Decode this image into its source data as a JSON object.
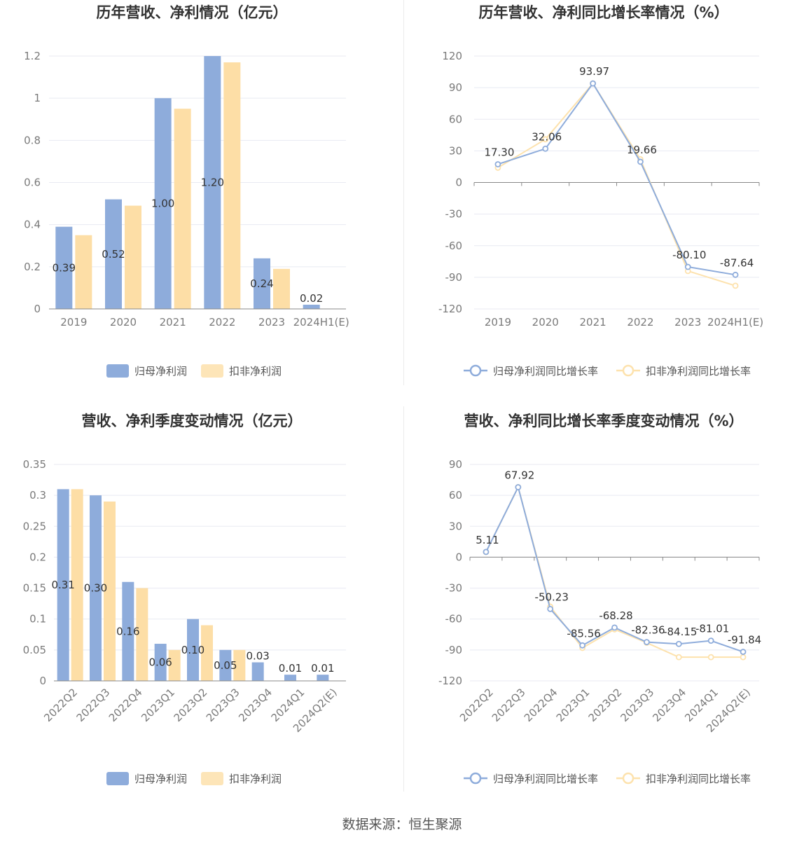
{
  "footer": {
    "source": "数据来源：恒生聚源"
  },
  "colors": {
    "primary": "#8eacdb",
    "secondary": "#fddea6",
    "primary_line": "#8eacdb",
    "secondary_line": "#fde2ad",
    "grid": "#e8eaf2",
    "axis": "#888888"
  },
  "chart_data": [
    {
      "id": "annual_profit",
      "type": "bar",
      "title": "历年营收、净利情况（亿元）",
      "categories": [
        "2019",
        "2020",
        "2021",
        "2022",
        "2023",
        "2024H1(E)"
      ],
      "series": [
        {
          "name": "归母净利润",
          "values": [
            0.39,
            0.52,
            1.0,
            1.2,
            0.24,
            0.02
          ],
          "labels": [
            "0.39",
            "0.52",
            "1.00",
            "1.20",
            "0.24",
            "0.02"
          ]
        },
        {
          "name": "扣非净利润",
          "values": [
            0.35,
            0.49,
            0.95,
            1.17,
            0.19,
            0.0
          ]
        }
      ],
      "yticks": [
        "0",
        "0.2",
        "0.4",
        "0.6",
        "0.8",
        "1",
        "1.2"
      ],
      "ylim": [
        0,
        1.2
      ],
      "legend": "bottom-center",
      "grid": true
    },
    {
      "id": "annual_growth",
      "type": "line",
      "title": "历年营收、净利同比增长率情况（%）",
      "categories": [
        "2019",
        "2020",
        "2021",
        "2022",
        "2023",
        "2024H1(E)"
      ],
      "series": [
        {
          "name": "归母净利润同比增长率",
          "values": [
            17.3,
            32.06,
            93.97,
            19.66,
            -80.1,
            -87.64
          ],
          "labels": [
            "17.30",
            "32.06",
            "93.97",
            "19.66",
            "-80.10",
            "-87.64"
          ]
        },
        {
          "name": "扣非净利润同比增长率",
          "values": [
            14,
            41,
            94,
            22,
            -84,
            -98
          ]
        }
      ],
      "yticks": [
        "120",
        "90",
        "60",
        "30",
        "0",
        "-30",
        "-60",
        "-90",
        "-120"
      ],
      "ylim": [
        -120,
        120
      ],
      "legend": "bottom-center",
      "grid": true
    },
    {
      "id": "quarterly_profit",
      "type": "bar",
      "title": "营收、净利季度变动情况（亿元）",
      "categories": [
        "2022Q2",
        "2022Q3",
        "2022Q4",
        "2023Q1",
        "2023Q2",
        "2023Q3",
        "2023Q4",
        "2024Q1",
        "2024Q2(E)"
      ],
      "series": [
        {
          "name": "归母净利润",
          "values": [
            0.31,
            0.3,
            0.16,
            0.06,
            0.1,
            0.05,
            0.03,
            0.01,
            0.01
          ],
          "labels": [
            "0.31",
            "0.30",
            "0.16",
            "0.06",
            "0.10",
            "0.05",
            "0.03",
            "0.01",
            "0.01"
          ]
        },
        {
          "name": "扣非净利润",
          "values": [
            0.31,
            0.29,
            0.15,
            0.05,
            0.09,
            0.05,
            0.0,
            0.0,
            0.0
          ]
        }
      ],
      "yticks": [
        "0",
        "0.05",
        "0.1",
        "0.15",
        "0.2",
        "0.25",
        "0.3",
        "0.35"
      ],
      "ylim": [
        0,
        0.35
      ],
      "legend": "bottom-center",
      "grid": true
    },
    {
      "id": "quarterly_growth",
      "type": "line",
      "title": "营收、净利同比增长率季度变动情况（%）",
      "categories": [
        "2022Q2",
        "2022Q3",
        "2022Q4",
        "2023Q1",
        "2023Q2",
        "2023Q3",
        "2023Q4",
        "2024Q1",
        "2024Q2(E)"
      ],
      "series": [
        {
          "name": "归母净利润同比增长率",
          "values": [
            5.11,
            67.92,
            -50.23,
            -85.56,
            -68.28,
            -82.36,
            -84.15,
            -81.01,
            -91.84
          ],
          "labels": [
            "5.11",
            "67.92",
            "-50.23",
            "-85.56",
            "-68.28",
            "-82.36",
            "-84.15",
            "-81.01",
            "-91.84"
          ]
        },
        {
          "name": "扣非净利润同比增长率",
          "values": [
            5,
            68,
            -48,
            -88,
            -70,
            -83,
            -97,
            -97,
            -97
          ]
        }
      ],
      "yticks": [
        "90",
        "60",
        "30",
        "0",
        "-30",
        "-60",
        "-90",
        "-120"
      ],
      "ylim": [
        -120,
        90
      ],
      "legend": "bottom-center",
      "grid": true
    }
  ]
}
